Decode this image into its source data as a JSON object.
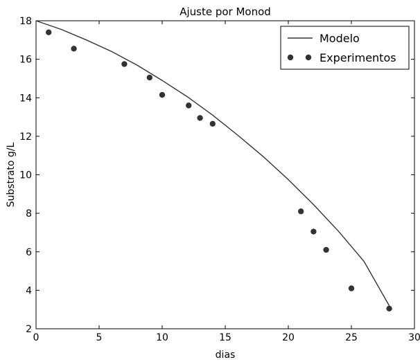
{
  "chart_data": {
    "type": "line",
    "title": "Ajuste por Monod",
    "xlabel": "dias",
    "ylabel": "Substrato g/L",
    "xlim": [
      0,
      30
    ],
    "ylim": [
      2,
      18
    ],
    "xticks": [
      0,
      5,
      10,
      15,
      20,
      25,
      30
    ],
    "yticks": [
      2,
      4,
      6,
      8,
      10,
      12,
      14,
      16,
      18
    ],
    "grid": false,
    "legend_position": "top-right",
    "series": [
      {
        "name": "Modelo",
        "kind": "line",
        "color": "#333333",
        "x": [
          0,
          2,
          4,
          6,
          8,
          10,
          12,
          14,
          16,
          18,
          20,
          22,
          24,
          26,
          28
        ],
        "y": [
          18.0,
          17.55,
          17.0,
          16.4,
          15.7,
          14.9,
          14.05,
          13.1,
          12.05,
          10.95,
          9.75,
          8.45,
          7.05,
          5.5,
          3.2
        ]
      },
      {
        "name": "Experimentos",
        "kind": "scatter",
        "color": "#333333",
        "x": [
          1,
          3,
          7,
          9,
          10,
          12.1,
          13,
          14,
          21,
          22,
          23,
          25,
          28
        ],
        "y": [
          17.4,
          16.55,
          15.75,
          15.05,
          14.15,
          13.6,
          12.95,
          12.65,
          8.1,
          7.05,
          6.1,
          4.1,
          3.05
        ]
      }
    ]
  }
}
